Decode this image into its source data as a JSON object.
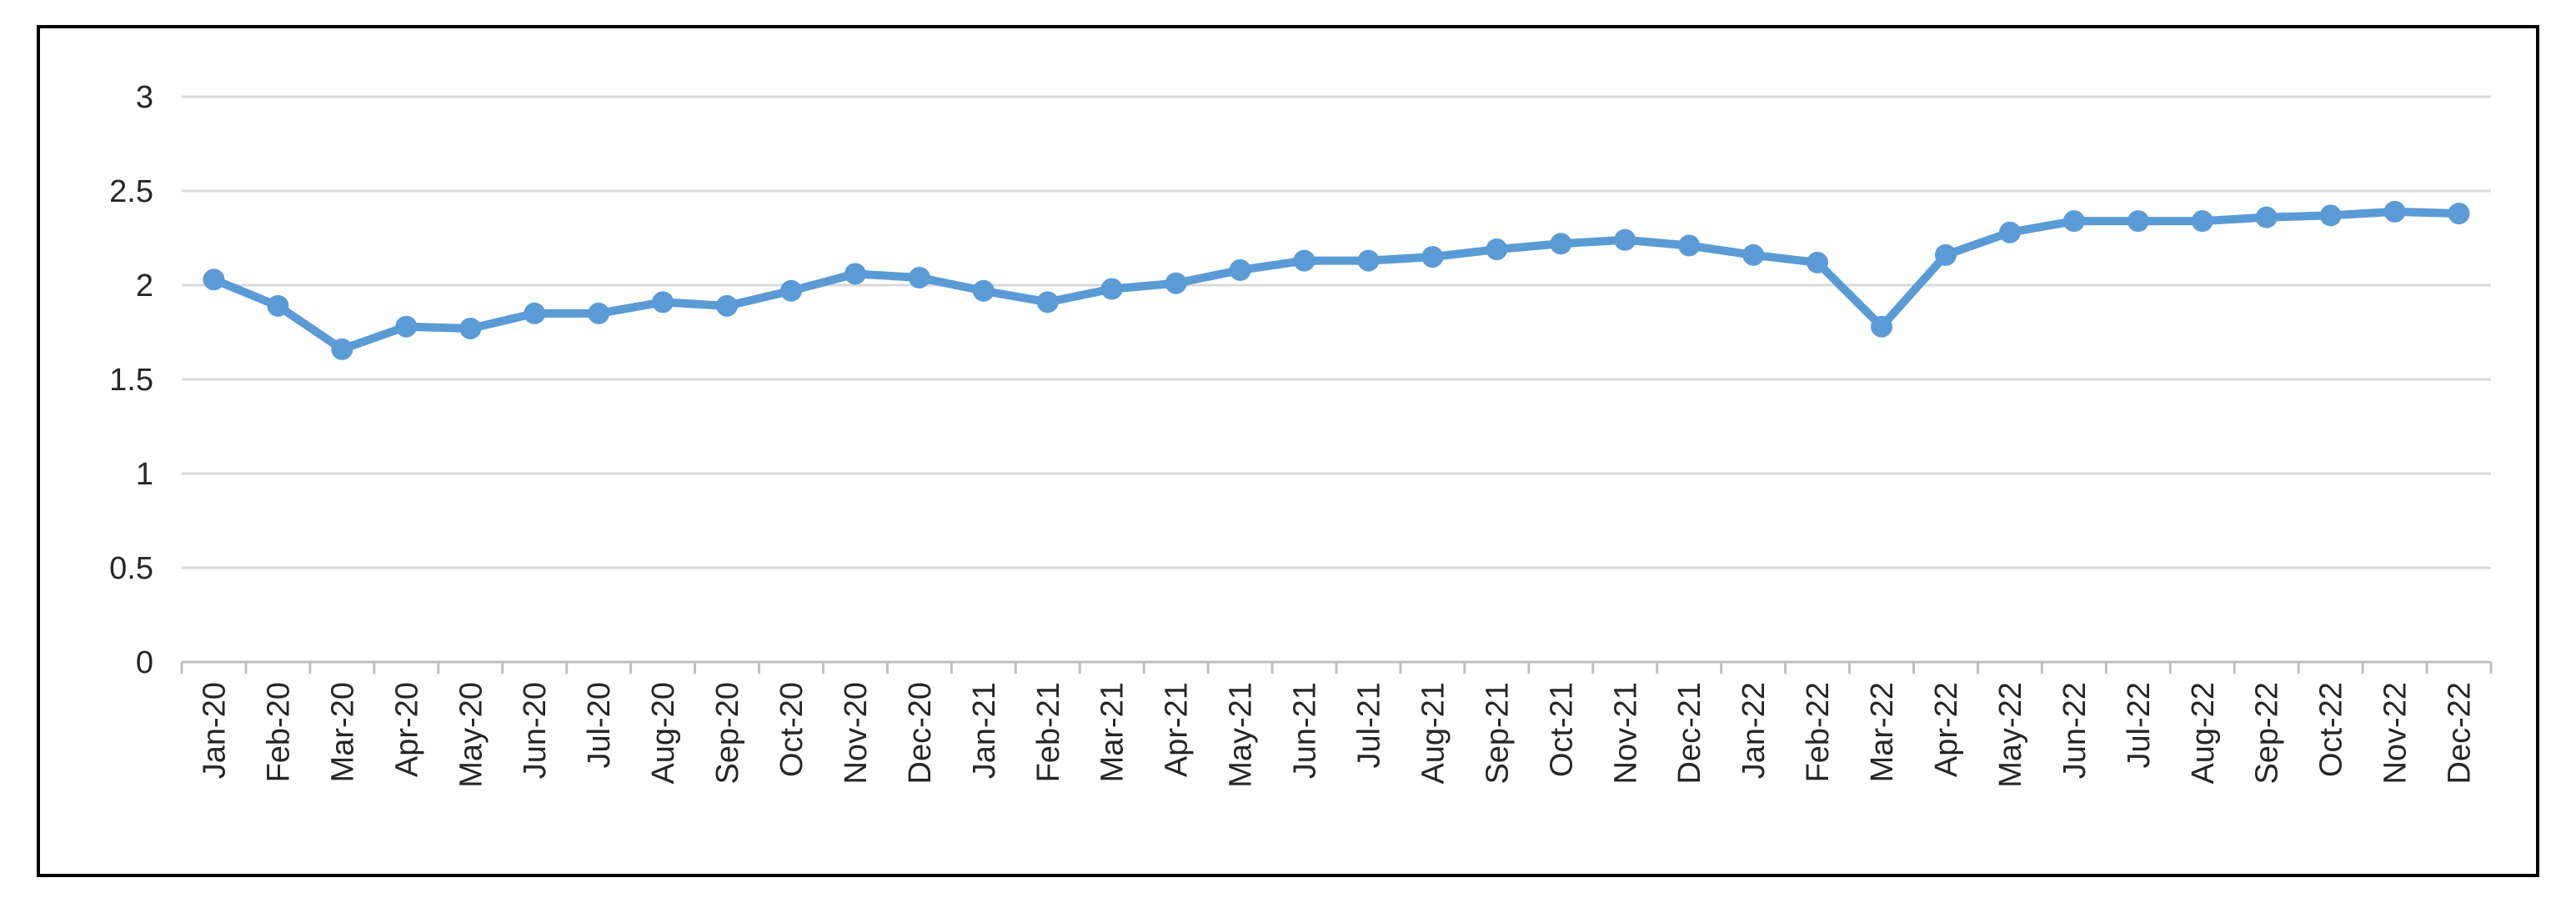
{
  "chart_data": {
    "type": "line",
    "title": "",
    "xlabel": "",
    "ylabel": "",
    "categories": [
      "Jan-20",
      "Feb-20",
      "Mar-20",
      "Apr-20",
      "May-20",
      "Jun-20",
      "Jul-20",
      "Aug-20",
      "Sep-20",
      "Oct-20",
      "Nov-20",
      "Dec-20",
      "Jan-21",
      "Feb-21",
      "Mar-21",
      "Apr-21",
      "May-21",
      "Jun-21",
      "Jul-21",
      "Aug-21",
      "Sep-21",
      "Oct-21",
      "Nov-21",
      "Dec-21",
      "Jan-22",
      "Feb-22",
      "Mar-22",
      "Apr-22",
      "May-22",
      "Jun-22",
      "Jul-22",
      "Aug-22",
      "Sep-22",
      "Oct-22",
      "Nov-22",
      "Dec-22"
    ],
    "series": [
      {
        "color": "#5B9BD5",
        "values": [
          2.03,
          1.89,
          1.66,
          1.78,
          1.77,
          1.85,
          1.85,
          1.91,
          1.89,
          1.97,
          2.06,
          2.04,
          1.97,
          1.91,
          1.98,
          2.01,
          2.08,
          2.13,
          2.13,
          2.15,
          2.19,
          2.22,
          2.24,
          2.21,
          2.16,
          2.12,
          1.78,
          2.16,
          2.28,
          2.34,
          2.34,
          2.34,
          2.36,
          2.37,
          2.39,
          2.38
        ]
      }
    ],
    "ylim": [
      0,
      3
    ],
    "yticks": [
      0,
      0.5,
      1,
      1.5,
      2,
      2.5,
      3
    ],
    "ytick_labels": [
      "0",
      "0.5",
      "1",
      "1.5",
      "2",
      "2.5",
      "3"
    ],
    "grid": true,
    "legend": "none",
    "colors": {
      "line": "#5B9BD5",
      "gridline": "#D9D9D9",
      "axis": "#BFBFBF",
      "text": "#262626"
    }
  }
}
